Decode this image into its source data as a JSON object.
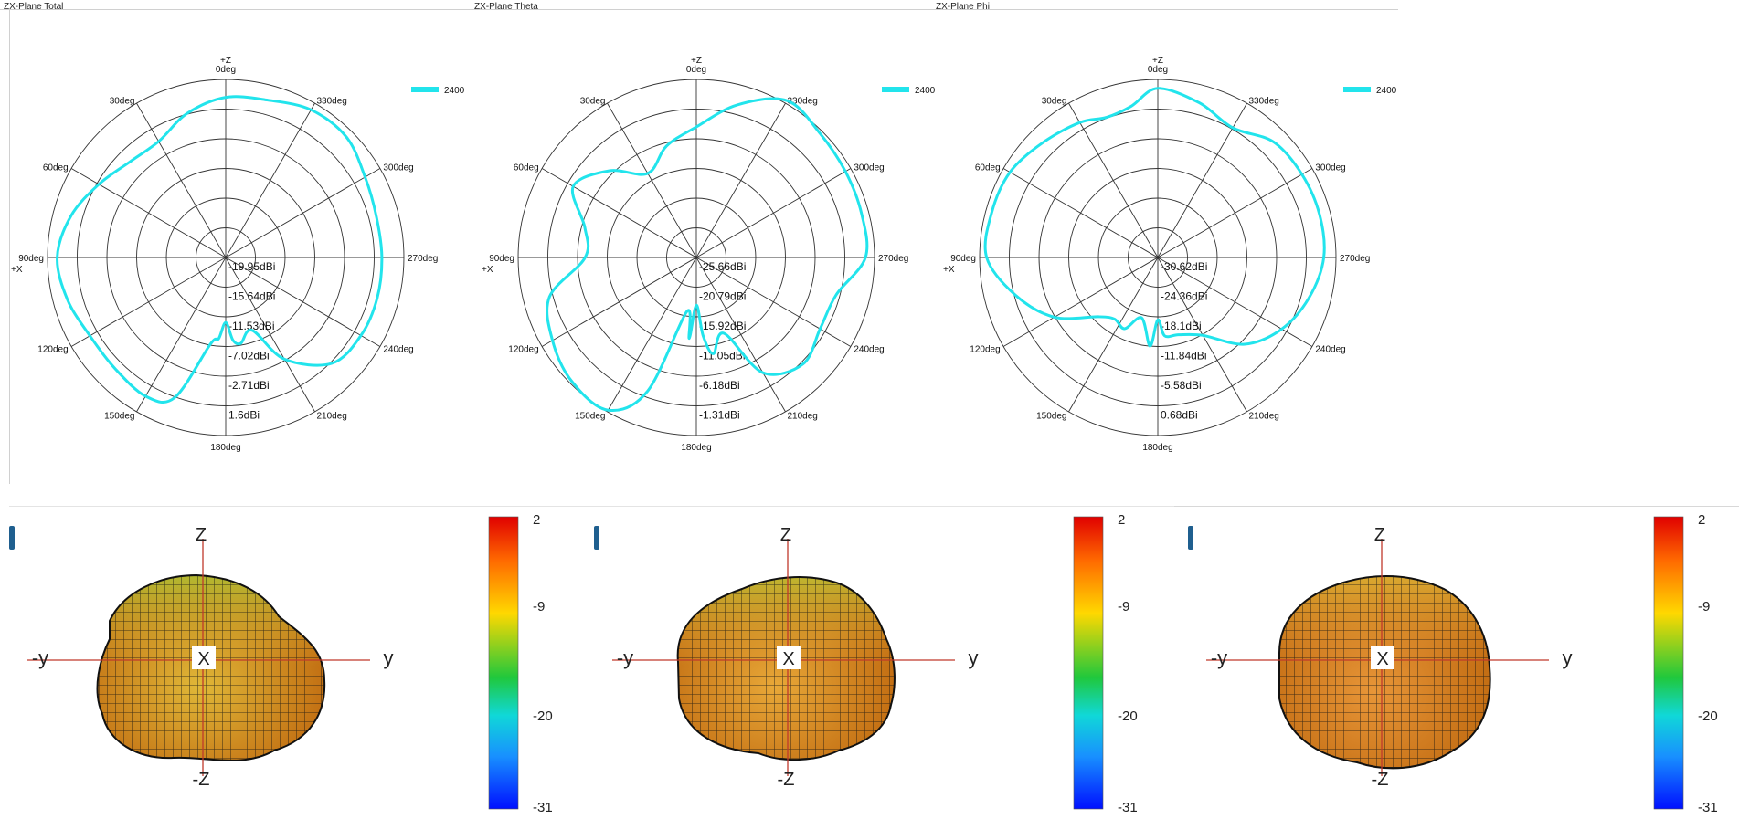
{
  "chart_data": [
    {
      "type": "polar-line",
      "title": "ZX-Plane Total",
      "top_axis_label": "+Z",
      "left_axis_label": "+X",
      "angle_labels": [
        "0deg",
        "330deg",
        "300deg",
        "270deg",
        "240deg",
        "210deg",
        "180deg",
        "150deg",
        "120deg",
        "90deg",
        "60deg",
        "30deg"
      ],
      "ring_labels": [
        "-19.95dBi",
        "-15.64dBi",
        "-11.53dBi",
        "-7.02dBi",
        "-2.71dBi",
        "1.6dBi"
      ],
      "rlim": [
        -24.26,
        1.6
      ],
      "legend": {
        "name": "2400",
        "color": "#22e4ec",
        "position": "top-right"
      },
      "series": [
        {
          "name": "2400",
          "color": "#22e4ec",
          "theta_deg": [
            0,
            15,
            30,
            45,
            60,
            75,
            90,
            105,
            120,
            135,
            150,
            160,
            170,
            175,
            180,
            185,
            190,
            200,
            210,
            225,
            240,
            255,
            270,
            285,
            300,
            315,
            330,
            345
          ],
          "r_dbi": [
            -1.0,
            -2.6,
            -4.8,
            -4.6,
            -3.0,
            -1.0,
            0.2,
            -0.5,
            -1.5,
            -1.5,
            -1.0,
            -2.6,
            -11.5,
            -12.4,
            -14.8,
            -12.2,
            -11.6,
            -13.0,
            -7.2,
            -2.5,
            -1.6,
            -1.5,
            -1.6,
            -1.6,
            -0.9,
            0.5,
            0.5,
            -0.6
          ]
        }
      ]
    },
    {
      "type": "polar-line",
      "title": "ZX-Plane Theta",
      "top_axis_label": "+Z",
      "left_axis_label": "+X",
      "angle_labels": [
        "0deg",
        "330deg",
        "300deg",
        "270deg",
        "240deg",
        "210deg",
        "180deg",
        "150deg",
        "120deg",
        "90deg",
        "60deg",
        "30deg"
      ],
      "ring_labels": [
        "-25.66dBi",
        "-20.79dBi",
        "-15.92dBi",
        "-11.05dBi",
        "-6.18dBi",
        "-1.31dBi"
      ],
      "rlim": [
        -30.53,
        -1.31
      ],
      "legend": {
        "name": "2400",
        "color": "#22e4ec",
        "position": "top-right"
      },
      "series": [
        {
          "name": "2400",
          "color": "#22e4ec",
          "theta_deg": [
            0,
            15,
            30,
            45,
            60,
            75,
            90,
            105,
            120,
            135,
            150,
            160,
            170,
            175,
            180,
            185,
            190,
            200,
            210,
            225,
            240,
            255,
            270,
            285,
            300,
            315,
            330,
            345
          ],
          "r_dbi": [
            -9.1,
            -11.6,
            -14.6,
            -10.4,
            -7.2,
            -11.6,
            -12.3,
            -5.6,
            -3.3,
            -1.7,
            -1.6,
            -7.2,
            -21.5,
            -17.2,
            -22.7,
            -17.6,
            -14.5,
            -17.3,
            -8.7,
            -5.8,
            -7.1,
            -6.8,
            -2.8,
            -2.5,
            -2.3,
            -1.8,
            -0.8,
            -4.6
          ]
        }
      ]
    },
    {
      "type": "polar-line",
      "title": "ZX-Plane Phi",
      "top_axis_label": "+Z",
      "left_axis_label": "+X",
      "angle_labels": [
        "0deg",
        "330deg",
        "300deg",
        "270deg",
        "240deg",
        "210deg",
        "180deg",
        "150deg",
        "120deg",
        "90deg",
        "60deg",
        "30deg"
      ],
      "ring_labels": [
        "-30.62dBi",
        "-24.36dBi",
        "-18.1dBi",
        "-11.84dBi",
        "-5.58dBi",
        "0.68dBi"
      ],
      "rlim": [
        -36.88,
        0.68
      ],
      "legend": {
        "name": "2400",
        "color": "#22e4ec",
        "position": "top-right"
      },
      "series": [
        {
          "name": "2400",
          "color": "#22e4ec",
          "theta_deg": [
            0,
            10,
            20,
            30,
            45,
            60,
            75,
            90,
            105,
            120,
            135,
            145,
            155,
            165,
            175,
            180,
            185,
            195,
            210,
            225,
            240,
            255,
            270,
            285,
            300,
            315,
            330,
            345
          ],
          "r_dbi": [
            -1.2,
            -4.5,
            -5.4,
            -4.0,
            -2.6,
            -0.9,
            -0.6,
            -0.8,
            -5.9,
            -11.7,
            -19.2,
            -21.0,
            -20.3,
            -23.7,
            -18.1,
            -23.7,
            -20.3,
            -20.0,
            -17.9,
            -11.0,
            -6.7,
            -3.9,
            -1.9,
            -1.6,
            -1.8,
            -2.4,
            -5.3,
            -3.1
          ]
        }
      ]
    }
  ],
  "patterns": [
    {
      "axis_z": "Z",
      "axis_neg_z": "-Z",
      "axis_y": "y",
      "axis_neg_y": "-y",
      "axis_x": "X",
      "colorbar_ticks": [
        "2",
        "-9",
        "-20",
        "-31"
      ],
      "colorbar_range": [
        -31,
        2
      ],
      "body_color": "#e0b838",
      "shade_color": "#a8d23a"
    },
    {
      "axis_z": "Z",
      "axis_neg_z": "-Z",
      "axis_y": "y",
      "axis_neg_y": "-y",
      "axis_x": "X",
      "colorbar_ticks": [
        "2",
        "-9",
        "-20",
        "-31"
      ],
      "colorbar_range": [
        -31,
        2
      ],
      "body_color": "#e8a838",
      "shade_color": "#b9d23a"
    },
    {
      "axis_z": "Z",
      "axis_neg_z": "-Z",
      "axis_y": "y",
      "axis_neg_y": "-y",
      "axis_x": "X",
      "colorbar_ticks": [
        "2",
        "-9",
        "-20",
        "-31"
      ],
      "colorbar_range": [
        -31,
        2
      ],
      "body_color": "#e89638",
      "shade_color": "#e0c03a"
    }
  ]
}
